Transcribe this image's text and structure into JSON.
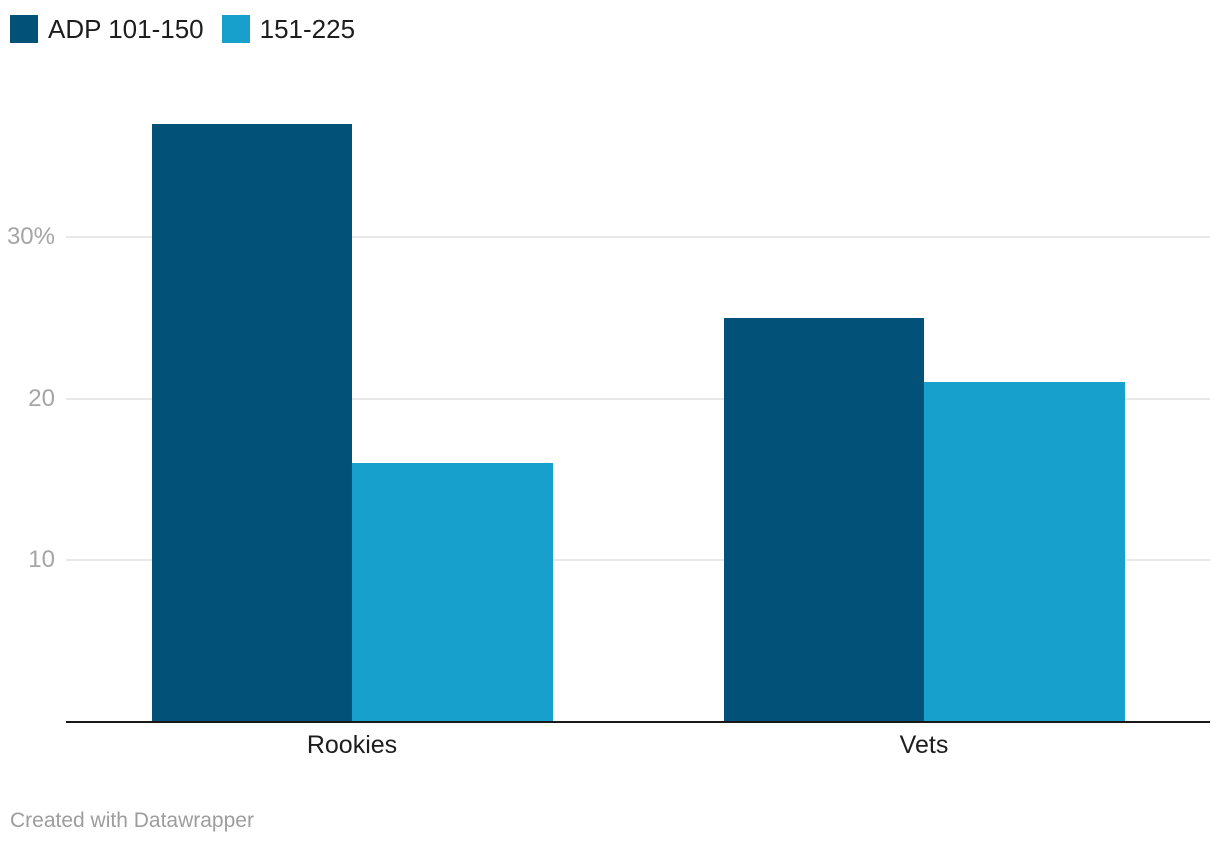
{
  "chart_data": {
    "type": "bar",
    "bar_grouping": "grouped",
    "title": "",
    "xlabel": "",
    "ylabel": "",
    "categories": [
      "Rookies",
      "Vets"
    ],
    "series": [
      {
        "name": "ADP 101-150",
        "color": "#015178",
        "values": [
          37,
          25
        ]
      },
      {
        "name": "151-225",
        "color": "#18a0cc",
        "values": [
          16,
          21
        ]
      }
    ],
    "ylim": [
      0,
      40
    ],
    "yticks": [
      {
        "value": 10,
        "label": "10"
      },
      {
        "value": 20,
        "label": "20"
      },
      {
        "value": 30,
        "label": "30%"
      }
    ],
    "grid": true,
    "legend_position": "top-left"
  },
  "footer": {
    "attribution": "Created with Datawrapper"
  },
  "colors": {
    "background": "#ffffff",
    "axis_line": "#191919",
    "gridline": "#e8e8e8",
    "tick_label": "#a5a5a5",
    "category_label": "#1d1d1d",
    "footer_text": "#9d9d9d"
  }
}
